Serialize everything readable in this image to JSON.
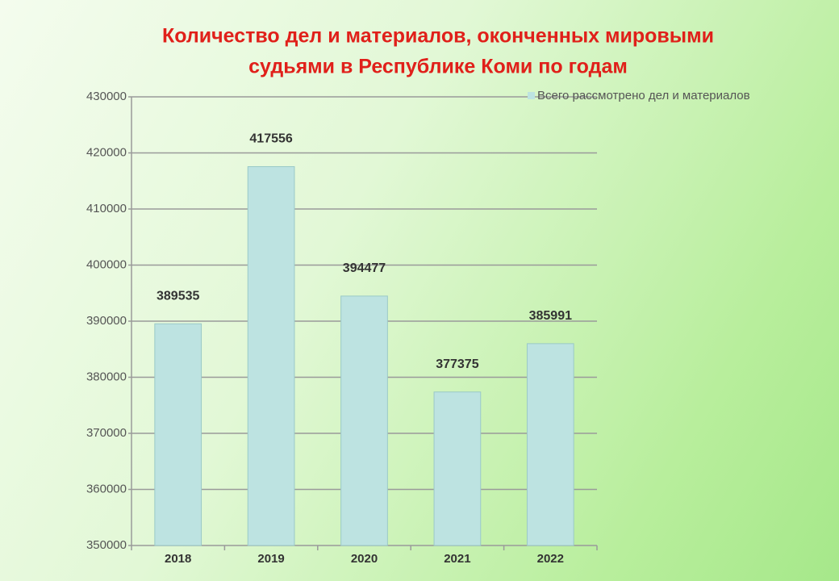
{
  "chart_data": {
    "type": "bar",
    "title": [
      "Количество дел и материалов, оконченных мировыми",
      "судьями в Республике Коми по годам"
    ],
    "categories": [
      "2018",
      "2019",
      "2020",
      "2021",
      "2022"
    ],
    "series": [
      {
        "name": "Всего рассмотрено дел и материалов",
        "color": "#bde3e1",
        "values": [
          389535,
          417556,
          394477,
          377375,
          385991
        ]
      }
    ],
    "ylim": [
      350000,
      430000
    ],
    "yticks": [
      350000,
      360000,
      370000,
      380000,
      390000,
      400000,
      410000,
      420000,
      430000
    ],
    "grid": true,
    "legend": "top-right",
    "data_labels": true
  }
}
